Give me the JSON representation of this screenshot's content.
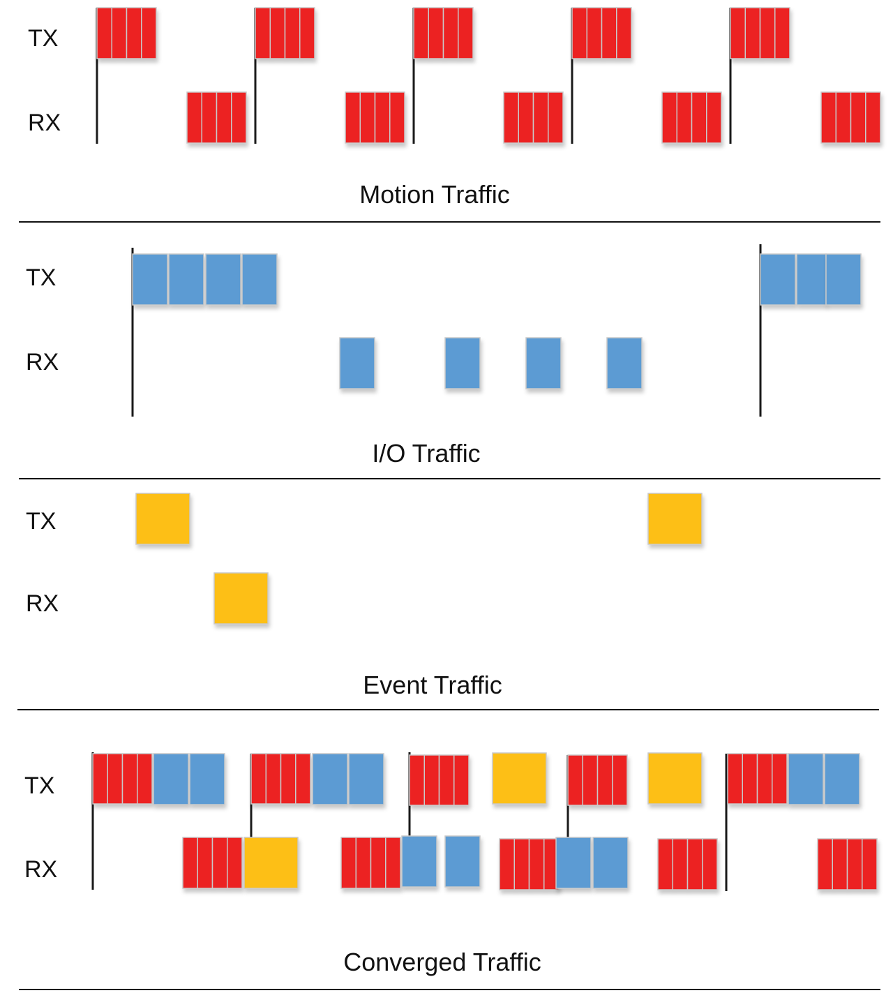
{
  "colors": {
    "motion": "#EC2024",
    "io": "#5B9BD3",
    "event": "#FDBF12",
    "line": "#1a1a1a",
    "block_border": "#c9c9c9"
  },
  "panels": [
    {
      "title": "Motion Traffic",
      "tx_label": "TX",
      "rx_label": "RX"
    },
    {
      "title": "I/O Traffic",
      "tx_label": "TX",
      "rx_label": "RX"
    },
    {
      "title": "Event Traffic",
      "tx_label": "TX",
      "rx_label": "RX"
    },
    {
      "title": "Converged Traffic",
      "tx_label": "TX",
      "rx_label": "RX"
    }
  ]
}
